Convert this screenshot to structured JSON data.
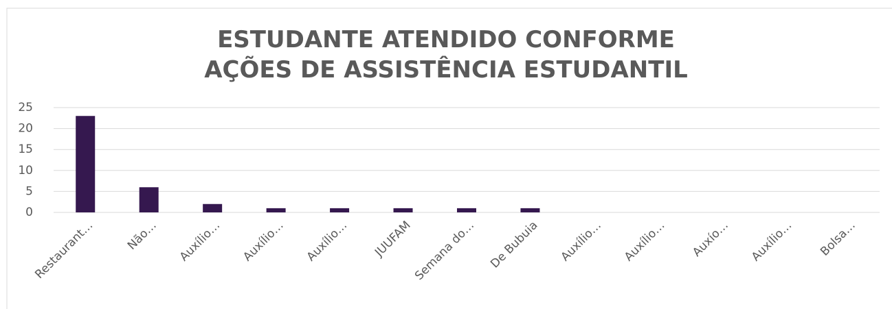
{
  "chart_data": {
    "type": "bar",
    "title": "ESTUDANTE ATENDIDO CONFORME AÇÕES DE ASSISTÊNCIA ESTUDANTIL",
    "categories": [
      "Restaurant…",
      "Não…",
      "Auxílio…",
      "Auxílio…",
      "Auxílio…",
      "JUUFAM",
      "Semana do…",
      "De Bubuia",
      "Auxílio…",
      "Auxílio…",
      "Auxío…",
      "Auxílio…",
      "Bolsa…"
    ],
    "values": [
      23,
      6,
      2,
      1,
      1,
      1,
      1,
      1,
      0,
      0,
      0,
      0,
      0
    ],
    "color": "#35184f",
    "ylim": [
      0,
      25
    ],
    "yticks": [
      0,
      5,
      10,
      15,
      20,
      25
    ],
    "grid": true
  }
}
